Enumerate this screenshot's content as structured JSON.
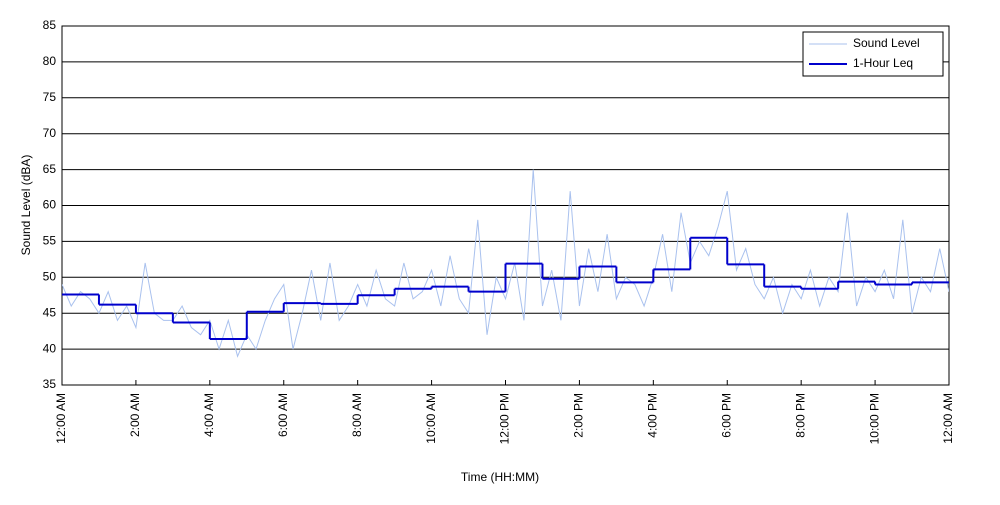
{
  "chart_data": {
    "type": "line",
    "xlabel": "Time (HH:MM)",
    "ylabel": "Sound Level (dBA)",
    "xlim": [
      0,
      24
    ],
    "ylim": [
      35,
      85
    ],
    "yticks": [
      35,
      40,
      45,
      50,
      55,
      60,
      65,
      70,
      75,
      80,
      85
    ],
    "xticks": [
      {
        "value": 0,
        "label": "12:00 AM"
      },
      {
        "value": 2,
        "label": "2:00 AM"
      },
      {
        "value": 4,
        "label": "4:00 AM"
      },
      {
        "value": 6,
        "label": "6:00 AM"
      },
      {
        "value": 8,
        "label": "8:00 AM"
      },
      {
        "value": 10,
        "label": "10:00 AM"
      },
      {
        "value": 12,
        "label": "12:00 PM"
      },
      {
        "value": 14,
        "label": "2:00 PM"
      },
      {
        "value": 16,
        "label": "4:00 PM"
      },
      {
        "value": 18,
        "label": "6:00 PM"
      },
      {
        "value": 20,
        "label": "8:00 PM"
      },
      {
        "value": 22,
        "label": "10:00 PM"
      },
      {
        "value": 24,
        "label": "12:00 AM"
      }
    ],
    "grid": true,
    "legend": "upper right",
    "series": [
      {
        "name": "Sound Level",
        "color": "#a9c1ee",
        "x": [
          0,
          0.25,
          0.5,
          0.75,
          1,
          1.25,
          1.5,
          1.75,
          2,
          2.25,
          2.5,
          2.75,
          3,
          3.25,
          3.5,
          3.75,
          4,
          4.25,
          4.5,
          4.75,
          5,
          5.25,
          5.5,
          5.75,
          6,
          6.25,
          6.5,
          6.75,
          7,
          7.25,
          7.5,
          7.75,
          8,
          8.25,
          8.5,
          8.75,
          9,
          9.25,
          9.5,
          9.75,
          10,
          10.25,
          10.5,
          10.75,
          11,
          11.25,
          11.5,
          11.75,
          12,
          12.25,
          12.5,
          12.75,
          13,
          13.25,
          13.5,
          13.75,
          14,
          14.25,
          14.5,
          14.75,
          15,
          15.25,
          15.5,
          15.75,
          16,
          16.25,
          16.5,
          16.75,
          17,
          17.25,
          17.5,
          17.75,
          18,
          18.25,
          18.5,
          18.75,
          19,
          19.25,
          19.5,
          19.75,
          20,
          20.25,
          20.5,
          20.75,
          21,
          21.25,
          21.5,
          21.75,
          22,
          22.25,
          22.5,
          22.75,
          23,
          23.25,
          23.5,
          23.75,
          24
        ],
        "values": [
          49,
          46,
          48,
          47,
          45,
          48,
          44,
          46,
          43,
          52,
          45,
          44,
          44,
          46,
          43,
          42,
          44,
          40,
          44,
          39,
          42,
          40,
          44,
          47,
          49,
          40,
          45,
          51,
          44,
          52,
          44,
          46,
          49,
          46,
          51,
          47,
          46,
          52,
          47,
          48,
          51,
          46,
          53,
          47,
          45,
          58,
          42,
          50,
          47,
          52,
          44,
          65,
          46,
          51,
          44,
          62,
          46,
          54,
          48,
          56,
          47,
          50,
          49,
          46,
          50,
          56,
          48,
          59,
          52,
          55,
          53,
          57,
          62,
          51,
          54,
          49,
          47,
          50,
          45,
          49,
          47,
          51,
          46,
          50,
          48,
          59,
          46,
          50,
          48,
          51,
          47,
          58,
          45,
          50,
          48,
          54,
          48
        ]
      },
      {
        "name": "1-Hour Leq",
        "color": "#0000cc",
        "drawstyle": "steps-post",
        "x": [
          0,
          1,
          2,
          3,
          4,
          5,
          6,
          7,
          8,
          9,
          10,
          11,
          12,
          13,
          14,
          15,
          16,
          17,
          18,
          19,
          20,
          21,
          22,
          23
        ],
        "values": [
          47.6,
          46.2,
          45.0,
          43.7,
          41.4,
          45.2,
          46.4,
          46.3,
          47.5,
          48.4,
          48.7,
          48.0,
          51.9,
          49.8,
          51.5,
          49.3,
          51.1,
          55.5,
          51.8,
          48.7,
          48.4,
          49.4,
          49.0,
          49.3
        ]
      }
    ]
  }
}
